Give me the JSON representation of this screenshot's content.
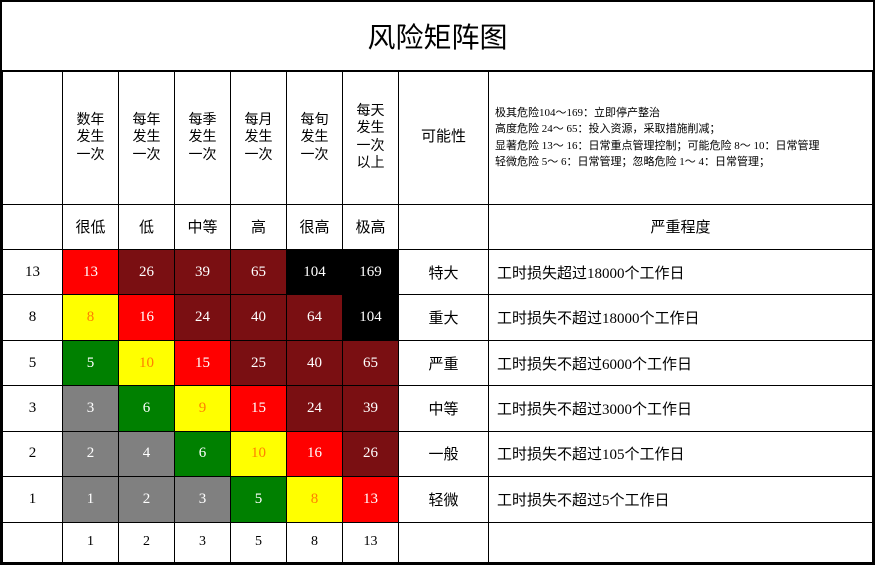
{
  "title": "风险矩阵图",
  "freq_headers": [
    "数年发生一次",
    "每年发生一次",
    "每季发生一次",
    "每月发生一次",
    "每旬发生一次",
    "每天发生一次以上"
  ],
  "possibility_label": "可能性",
  "severity_header": "严重程度",
  "legend_lines": [
    "极其危险104～169：立即停产整治",
    "高度危险 24～ 65：投入资源，采取措施削减；",
    "显著危险 13～ 16：日常重点管理控制；",
    "可能危险  8～ 10：日常管理",
    "轻微危险  5～  6：日常管理；",
    "忽略危险  1～  4：日常管理；"
  ],
  "level_labels": [
    "很低",
    "低",
    "中等",
    "高",
    "很高",
    "极高"
  ],
  "rows": [
    {
      "left": "13",
      "cells": [
        {
          "v": "13",
          "bg": "#ff0000",
          "fg": "#ffffff"
        },
        {
          "v": "26",
          "bg": "#7a0f12",
          "fg": "#ffffff"
        },
        {
          "v": "39",
          "bg": "#7a0f12",
          "fg": "#ffffff"
        },
        {
          "v": "65",
          "bg": "#7a0f12",
          "fg": "#ffffff"
        },
        {
          "v": "104",
          "bg": "#000000",
          "fg": "#ffffff"
        },
        {
          "v": "169",
          "bg": "#000000",
          "fg": "#ffffff"
        }
      ],
      "poss": "特大",
      "sev": "工时损失超过18000个工作日"
    },
    {
      "left": "8",
      "cells": [
        {
          "v": "8",
          "bg": "#ffff00",
          "fg": "#ff8000"
        },
        {
          "v": "16",
          "bg": "#ff0000",
          "fg": "#ffffff"
        },
        {
          "v": "24",
          "bg": "#7a0f12",
          "fg": "#ffffff"
        },
        {
          "v": "40",
          "bg": "#7a0f12",
          "fg": "#ffffff"
        },
        {
          "v": "64",
          "bg": "#7a0f12",
          "fg": "#ffffff"
        },
        {
          "v": "104",
          "bg": "#000000",
          "fg": "#ffffff"
        }
      ],
      "poss": "重大",
      "sev": "工时损失不超过18000个工作日"
    },
    {
      "left": "5",
      "cells": [
        {
          "v": "5",
          "bg": "#008000",
          "fg": "#ffffff"
        },
        {
          "v": "10",
          "bg": "#ffff00",
          "fg": "#ff8000"
        },
        {
          "v": "15",
          "bg": "#ff0000",
          "fg": "#ffffff"
        },
        {
          "v": "25",
          "bg": "#7a0f12",
          "fg": "#ffffff"
        },
        {
          "v": "40",
          "bg": "#7a0f12",
          "fg": "#ffffff"
        },
        {
          "v": "65",
          "bg": "#7a0f12",
          "fg": "#ffffff"
        }
      ],
      "poss": "严重",
      "sev": "工时损失不超过6000个工作日"
    },
    {
      "left": "3",
      "cells": [
        {
          "v": "3",
          "bg": "#808080",
          "fg": "#ffffff"
        },
        {
          "v": "6",
          "bg": "#008000",
          "fg": "#ffffff"
        },
        {
          "v": "9",
          "bg": "#ffff00",
          "fg": "#ff8000"
        },
        {
          "v": "15",
          "bg": "#ff0000",
          "fg": "#ffffff"
        },
        {
          "v": "24",
          "bg": "#7a0f12",
          "fg": "#ffffff"
        },
        {
          "v": "39",
          "bg": "#7a0f12",
          "fg": "#ffffff"
        }
      ],
      "poss": "中等",
      "sev": "工时损失不超过3000个工作日"
    },
    {
      "left": "2",
      "cells": [
        {
          "v": "2",
          "bg": "#808080",
          "fg": "#ffffff"
        },
        {
          "v": "4",
          "bg": "#808080",
          "fg": "#ffffff"
        },
        {
          "v": "6",
          "bg": "#008000",
          "fg": "#ffffff"
        },
        {
          "v": "10",
          "bg": "#ffff00",
          "fg": "#ff8000"
        },
        {
          "v": "16",
          "bg": "#ff0000",
          "fg": "#ffffff"
        },
        {
          "v": "26",
          "bg": "#7a0f12",
          "fg": "#ffffff"
        }
      ],
      "poss": "一般",
      "sev": "工时损失不超过105个工作日"
    },
    {
      "left": "1",
      "cells": [
        {
          "v": "1",
          "bg": "#808080",
          "fg": "#ffffff"
        },
        {
          "v": "2",
          "bg": "#808080",
          "fg": "#ffffff"
        },
        {
          "v": "3",
          "bg": "#808080",
          "fg": "#ffffff"
        },
        {
          "v": "5",
          "bg": "#008000",
          "fg": "#ffffff"
        },
        {
          "v": "8",
          "bg": "#ffff00",
          "fg": "#ff8000"
        },
        {
          "v": "13",
          "bg": "#ff0000",
          "fg": "#ffffff"
        }
      ],
      "poss": "轻微",
      "sev": "工时损失不超过5个工作日"
    }
  ],
  "bottom_values": [
    "1",
    "2",
    "3",
    "5",
    "8",
    "13"
  ],
  "colors": {
    "border": "#000000",
    "bg": "#ffffff",
    "text": "#000000"
  },
  "cell_font_size": 15,
  "title_font_size": 28,
  "legend_font_size": 11
}
